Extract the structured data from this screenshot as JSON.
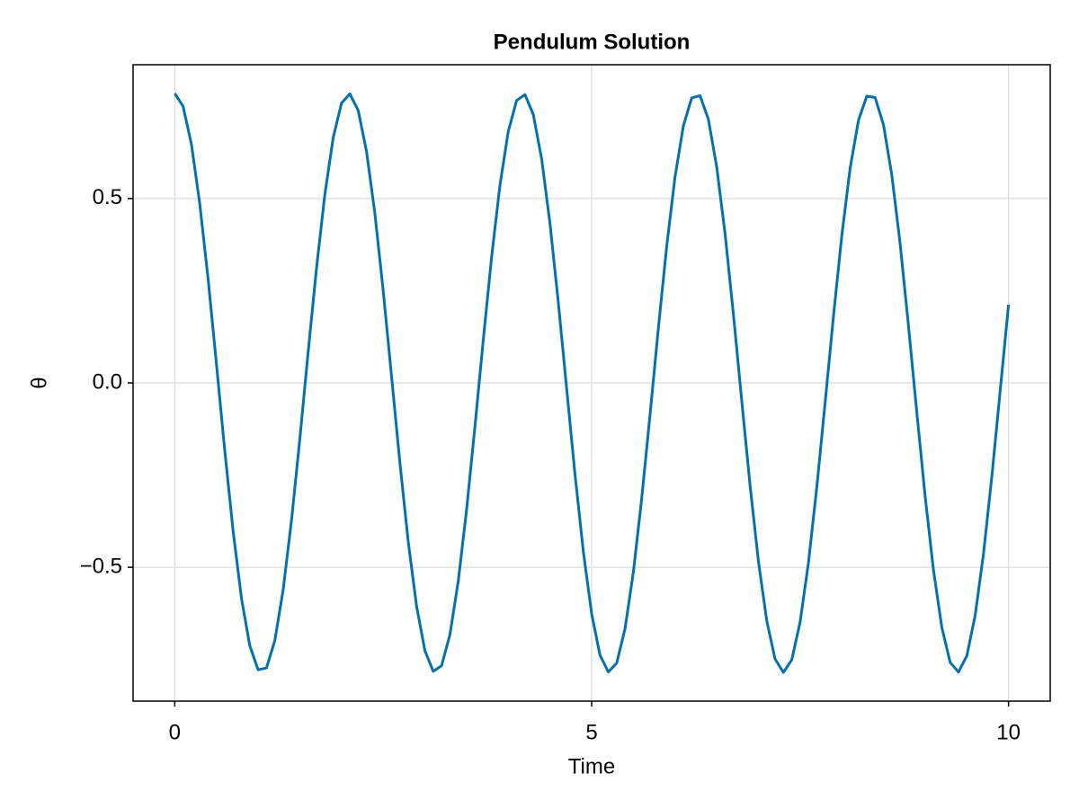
{
  "chart_data": {
    "type": "line",
    "title": "Pendulum Solution",
    "x_label": "Time",
    "y_label": "θ",
    "x": [
      0,
      0.1,
      0.2,
      0.3,
      0.4,
      0.5,
      0.6,
      0.7,
      0.8,
      0.9,
      1,
      1.1,
      1.2,
      1.3,
      1.4,
      1.5,
      1.6,
      1.7,
      1.8,
      1.9,
      2,
      2.1,
      2.2,
      2.3,
      2.4,
      2.5,
      2.6,
      2.7,
      2.8,
      2.9,
      3,
      3.1,
      3.2,
      3.3,
      3.4,
      3.5,
      3.6,
      3.7,
      3.8,
      3.9,
      4,
      4.1,
      4.2,
      4.3,
      4.4,
      4.5,
      4.6,
      4.7,
      4.8,
      4.9,
      5,
      5.1,
      5.2,
      5.3,
      5.4,
      5.5,
      5.6,
      5.7,
      5.8,
      5.9,
      6,
      6.1,
      6.2,
      6.3,
      6.4,
      6.5,
      6.6,
      6.7,
      6.8,
      6.9,
      7,
      7.1,
      7.2,
      7.3,
      7.4,
      7.5,
      7.6,
      7.7,
      7.8,
      7.9,
      8,
      8.1,
      8.2,
      8.3,
      8.4,
      8.5,
      8.6,
      8.7,
      8.8,
      8.9,
      9,
      9.1,
      9.2,
      9.3,
      9.4,
      9.5,
      9.6,
      9.7,
      9.8,
      9.9,
      10
    ],
    "values": [
      0.785,
      0.75,
      0.647,
      0.486,
      0.282,
      0.051,
      -0.184,
      -0.402,
      -0.584,
      -0.713,
      -0.778,
      -0.773,
      -0.699,
      -0.561,
      -0.373,
      -0.152,
      0.084,
      0.311,
      0.511,
      0.665,
      0.759,
      0.784,
      0.739,
      0.628,
      0.46,
      0.25,
      0.018,
      -0.216,
      -0.43,
      -0.605,
      -0.726,
      -0.782,
      -0.767,
      -0.683,
      -0.538,
      -0.344,
      -0.119,
      0.116,
      0.341,
      0.536,
      0.682,
      0.766,
      0.782,
      0.728,
      0.608,
      0.433,
      0.219,
      -0.015,
      -0.247,
      -0.457,
      -0.626,
      -0.738,
      -0.784,
      -0.76,
      -0.667,
      -0.514,
      -0.314,
      -0.087,
      0.148,
      0.37,
      0.559,
      0.697,
      0.773,
      0.779,
      0.715,
      0.586,
      0.405,
      0.187,
      -0.048,
      -0.278,
      -0.483,
      -0.645,
      -0.749,
      -0.785,
      -0.751,
      -0.649,
      -0.488,
      -0.284,
      -0.054,
      0.18,
      0.399,
      0.582,
      0.712,
      0.778,
      0.774,
      0.7,
      0.564,
      0.377,
      0.155,
      -0.08,
      -0.308,
      -0.508,
      -0.663,
      -0.758,
      -0.784,
      -0.74,
      -0.63,
      -0.463,
      -0.253,
      -0.021,
      0.212
    ],
    "color": "#0072b2",
    "xlim": [
      -0.5,
      10.5
    ],
    "xticks": [
      0,
      5,
      10
    ],
    "ylim": [
      -0.863,
      0.863
    ],
    "yticks": [
      {
        "value": -0.5,
        "label": "−0.5"
      },
      {
        "value": 0,
        "label": "0.0"
      },
      0.5
    ],
    "grid": true
  }
}
